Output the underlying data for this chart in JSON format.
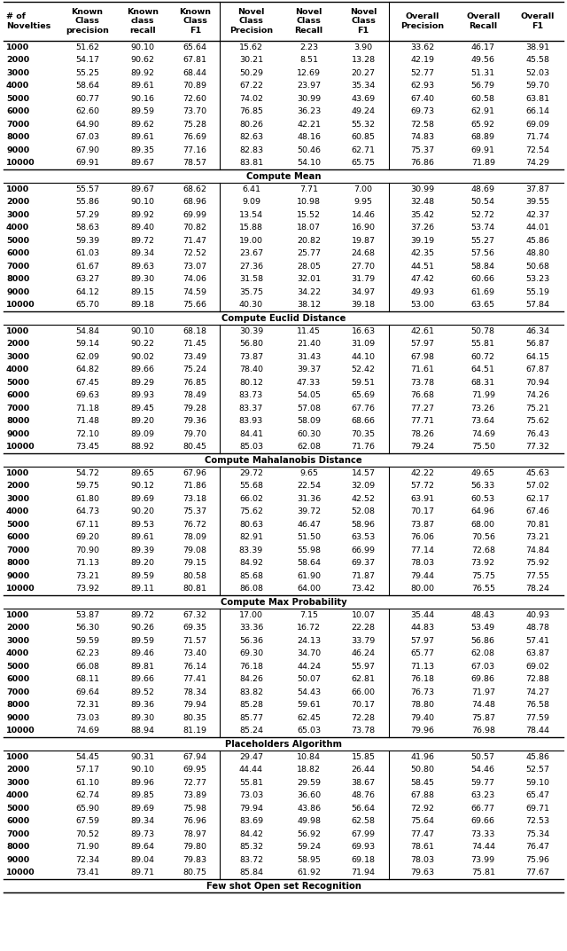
{
  "header": [
    "# of\nNovelties",
    "Known\nClass\nprecision",
    "Known\nclass\nrecall",
    "Known\nClass\nF1",
    "Novel\nClass\nPrecision",
    "Novel\nClass\nRecall",
    "Novel\nClass\nF1",
    "Overall\nPrecision",
    "Overall\nRecall",
    "Overall\nF1"
  ],
  "sections": [
    {
      "title": null,
      "rows": [
        [
          "1000",
          "51.62",
          "90.10",
          "65.64",
          "15.62",
          "2.23",
          "3.90",
          "33.62",
          "46.17",
          "38.91"
        ],
        [
          "2000",
          "54.17",
          "90.62",
          "67.81",
          "30.21",
          "8.51",
          "13.28",
          "42.19",
          "49.56",
          "45.58"
        ],
        [
          "3000",
          "55.25",
          "89.92",
          "68.44",
          "50.29",
          "12.69",
          "20.27",
          "52.77",
          "51.31",
          "52.03"
        ],
        [
          "4000",
          "58.64",
          "89.61",
          "70.89",
          "67.22",
          "23.97",
          "35.34",
          "62.93",
          "56.79",
          "59.70"
        ],
        [
          "5000",
          "60.77",
          "90.16",
          "72.60",
          "74.02",
          "30.99",
          "43.69",
          "67.40",
          "60.58",
          "63.81"
        ],
        [
          "6000",
          "62.60",
          "89.59",
          "73.70",
          "76.85",
          "36.23",
          "49.24",
          "69.73",
          "62.91",
          "66.14"
        ],
        [
          "7000",
          "64.90",
          "89.62",
          "75.28",
          "80.26",
          "42.21",
          "55.32",
          "72.58",
          "65.92",
          "69.09"
        ],
        [
          "8000",
          "67.03",
          "89.61",
          "76.69",
          "82.63",
          "48.16",
          "60.85",
          "74.83",
          "68.89",
          "71.74"
        ],
        [
          "9000",
          "67.90",
          "89.35",
          "77.16",
          "82.83",
          "50.46",
          "62.71",
          "75.37",
          "69.91",
          "72.54"
        ],
        [
          "10000",
          "69.91",
          "89.67",
          "78.57",
          "83.81",
          "54.10",
          "65.75",
          "76.86",
          "71.89",
          "74.29"
        ]
      ]
    },
    {
      "title": "Compute Mean",
      "rows": [
        [
          "1000",
          "55.57",
          "89.67",
          "68.62",
          "6.41",
          "7.71",
          "7.00",
          "30.99",
          "48.69",
          "37.87"
        ],
        [
          "2000",
          "55.86",
          "90.10",
          "68.96",
          "9.09",
          "10.98",
          "9.95",
          "32.48",
          "50.54",
          "39.55"
        ],
        [
          "3000",
          "57.29",
          "89.92",
          "69.99",
          "13.54",
          "15.52",
          "14.46",
          "35.42",
          "52.72",
          "42.37"
        ],
        [
          "4000",
          "58.63",
          "89.40",
          "70.82",
          "15.88",
          "18.07",
          "16.90",
          "37.26",
          "53.74",
          "44.01"
        ],
        [
          "5000",
          "59.39",
          "89.72",
          "71.47",
          "19.00",
          "20.82",
          "19.87",
          "39.19",
          "55.27",
          "45.86"
        ],
        [
          "6000",
          "61.03",
          "89.34",
          "72.52",
          "23.67",
          "25.77",
          "24.68",
          "42.35",
          "57.56",
          "48.80"
        ],
        [
          "7000",
          "61.67",
          "89.63",
          "73.07",
          "27.36",
          "28.05",
          "27.70",
          "44.51",
          "58.84",
          "50.68"
        ],
        [
          "8000",
          "63.27",
          "89.30",
          "74.06",
          "31.58",
          "32.01",
          "31.79",
          "47.42",
          "60.66",
          "53.23"
        ],
        [
          "9000",
          "64.12",
          "89.15",
          "74.59",
          "35.75",
          "34.22",
          "34.97",
          "49.93",
          "61.69",
          "55.19"
        ],
        [
          "10000",
          "65.70",
          "89.18",
          "75.66",
          "40.30",
          "38.12",
          "39.18",
          "53.00",
          "63.65",
          "57.84"
        ]
      ]
    },
    {
      "title": "Compute Euclid Distance",
      "rows": [
        [
          "1000",
          "54.84",
          "90.10",
          "68.18",
          "30.39",
          "11.45",
          "16.63",
          "42.61",
          "50.78",
          "46.34"
        ],
        [
          "2000",
          "59.14",
          "90.22",
          "71.45",
          "56.80",
          "21.40",
          "31.09",
          "57.97",
          "55.81",
          "56.87"
        ],
        [
          "3000",
          "62.09",
          "90.02",
          "73.49",
          "73.87",
          "31.43",
          "44.10",
          "67.98",
          "60.72",
          "64.15"
        ],
        [
          "4000",
          "64.82",
          "89.66",
          "75.24",
          "78.40",
          "39.37",
          "52.42",
          "71.61",
          "64.51",
          "67.87"
        ],
        [
          "5000",
          "67.45",
          "89.29",
          "76.85",
          "80.12",
          "47.33",
          "59.51",
          "73.78",
          "68.31",
          "70.94"
        ],
        [
          "6000",
          "69.63",
          "89.93",
          "78.49",
          "83.73",
          "54.05",
          "65.69",
          "76.68",
          "71.99",
          "74.26"
        ],
        [
          "7000",
          "71.18",
          "89.45",
          "79.28",
          "83.37",
          "57.08",
          "67.76",
          "77.27",
          "73.26",
          "75.21"
        ],
        [
          "8000",
          "71.48",
          "89.20",
          "79.36",
          "83.93",
          "58.09",
          "68.66",
          "77.71",
          "73.64",
          "75.62"
        ],
        [
          "9000",
          "72.10",
          "89.09",
          "79.70",
          "84.41",
          "60.30",
          "70.35",
          "78.26",
          "74.69",
          "76.43"
        ],
        [
          "10000",
          "73.45",
          "88.92",
          "80.45",
          "85.03",
          "62.08",
          "71.76",
          "79.24",
          "75.50",
          "77.32"
        ]
      ]
    },
    {
      "title": "Compute Mahalanobis Distance",
      "rows": [
        [
          "1000",
          "54.72",
          "89.65",
          "67.96",
          "29.72",
          "9.65",
          "14.57",
          "42.22",
          "49.65",
          "45.63"
        ],
        [
          "2000",
          "59.75",
          "90.12",
          "71.86",
          "55.68",
          "22.54",
          "32.09",
          "57.72",
          "56.33",
          "57.02"
        ],
        [
          "3000",
          "61.80",
          "89.69",
          "73.18",
          "66.02",
          "31.36",
          "42.52",
          "63.91",
          "60.53",
          "62.17"
        ],
        [
          "4000",
          "64.73",
          "90.20",
          "75.37",
          "75.62",
          "39.72",
          "52.08",
          "70.17",
          "64.96",
          "67.46"
        ],
        [
          "5000",
          "67.11",
          "89.53",
          "76.72",
          "80.63",
          "46.47",
          "58.96",
          "73.87",
          "68.00",
          "70.81"
        ],
        [
          "6000",
          "69.20",
          "89.61",
          "78.09",
          "82.91",
          "51.50",
          "63.53",
          "76.06",
          "70.56",
          "73.21"
        ],
        [
          "7000",
          "70.90",
          "89.39",
          "79.08",
          "83.39",
          "55.98",
          "66.99",
          "77.14",
          "72.68",
          "74.84"
        ],
        [
          "8000",
          "71.13",
          "89.20",
          "79.15",
          "84.92",
          "58.64",
          "69.37",
          "78.03",
          "73.92",
          "75.92"
        ],
        [
          "9000",
          "73.21",
          "89.59",
          "80.58",
          "85.68",
          "61.90",
          "71.87",
          "79.44",
          "75.75",
          "77.55"
        ],
        [
          "10000",
          "73.92",
          "89.11",
          "80.81",
          "86.08",
          "64.00",
          "73.42",
          "80.00",
          "76.55",
          "78.24"
        ]
      ]
    },
    {
      "title": "Compute Max Probability",
      "rows": [
        [
          "1000",
          "53.87",
          "89.72",
          "67.32",
          "17.00",
          "7.15",
          "10.07",
          "35.44",
          "48.43",
          "40.93"
        ],
        [
          "2000",
          "56.30",
          "90.26",
          "69.35",
          "33.36",
          "16.72",
          "22.28",
          "44.83",
          "53.49",
          "48.78"
        ],
        [
          "3000",
          "59.59",
          "89.59",
          "71.57",
          "56.36",
          "24.13",
          "33.79",
          "57.97",
          "56.86",
          "57.41"
        ],
        [
          "4000",
          "62.23",
          "89.46",
          "73.40",
          "69.30",
          "34.70",
          "46.24",
          "65.77",
          "62.08",
          "63.87"
        ],
        [
          "5000",
          "66.08",
          "89.81",
          "76.14",
          "76.18",
          "44.24",
          "55.97",
          "71.13",
          "67.03",
          "69.02"
        ],
        [
          "6000",
          "68.11",
          "89.66",
          "77.41",
          "84.26",
          "50.07",
          "62.81",
          "76.18",
          "69.86",
          "72.88"
        ],
        [
          "7000",
          "69.64",
          "89.52",
          "78.34",
          "83.82",
          "54.43",
          "66.00",
          "76.73",
          "71.97",
          "74.27"
        ],
        [
          "8000",
          "72.31",
          "89.36",
          "79.94",
          "85.28",
          "59.61",
          "70.17",
          "78.80",
          "74.48",
          "76.58"
        ],
        [
          "9000",
          "73.03",
          "89.30",
          "80.35",
          "85.77",
          "62.45",
          "72.28",
          "79.40",
          "75.87",
          "77.59"
        ],
        [
          "10000",
          "74.69",
          "88.94",
          "81.19",
          "85.24",
          "65.03",
          "73.78",
          "79.96",
          "76.98",
          "78.44"
        ]
      ]
    },
    {
      "title": "Placeholders Algorithm",
      "rows": [
        [
          "1000",
          "54.45",
          "90.31",
          "67.94",
          "29.47",
          "10.84",
          "15.85",
          "41.96",
          "50.57",
          "45.86"
        ],
        [
          "2000",
          "57.17",
          "90.10",
          "69.95",
          "44.44",
          "18.82",
          "26.44",
          "50.80",
          "54.46",
          "52.57"
        ],
        [
          "3000",
          "61.10",
          "89.96",
          "72.77",
          "55.81",
          "29.59",
          "38.67",
          "58.45",
          "59.77",
          "59.10"
        ],
        [
          "4000",
          "62.74",
          "89.85",
          "73.89",
          "73.03",
          "36.60",
          "48.76",
          "67.88",
          "63.23",
          "65.47"
        ],
        [
          "5000",
          "65.90",
          "89.69",
          "75.98",
          "79.94",
          "43.86",
          "56.64",
          "72.92",
          "66.77",
          "69.71"
        ],
        [
          "6000",
          "67.59",
          "89.34",
          "76.96",
          "83.69",
          "49.98",
          "62.58",
          "75.64",
          "69.66",
          "72.53"
        ],
        [
          "7000",
          "70.52",
          "89.73",
          "78.97",
          "84.42",
          "56.92",
          "67.99",
          "77.47",
          "73.33",
          "75.34"
        ],
        [
          "8000",
          "71.90",
          "89.64",
          "79.80",
          "85.32",
          "59.24",
          "69.93",
          "78.61",
          "74.44",
          "76.47"
        ],
        [
          "9000",
          "72.34",
          "89.04",
          "79.83",
          "83.72",
          "58.95",
          "69.18",
          "78.03",
          "73.99",
          "75.96"
        ],
        [
          "10000",
          "73.41",
          "89.71",
          "80.75",
          "85.84",
          "61.92",
          "71.94",
          "79.63",
          "75.81",
          "77.67"
        ]
      ]
    },
    {
      "title": "Few shot Open set Recognition",
      "rows": []
    }
  ],
  "figsize": [
    6.4,
    10.72
  ],
  "dpi": 100
}
